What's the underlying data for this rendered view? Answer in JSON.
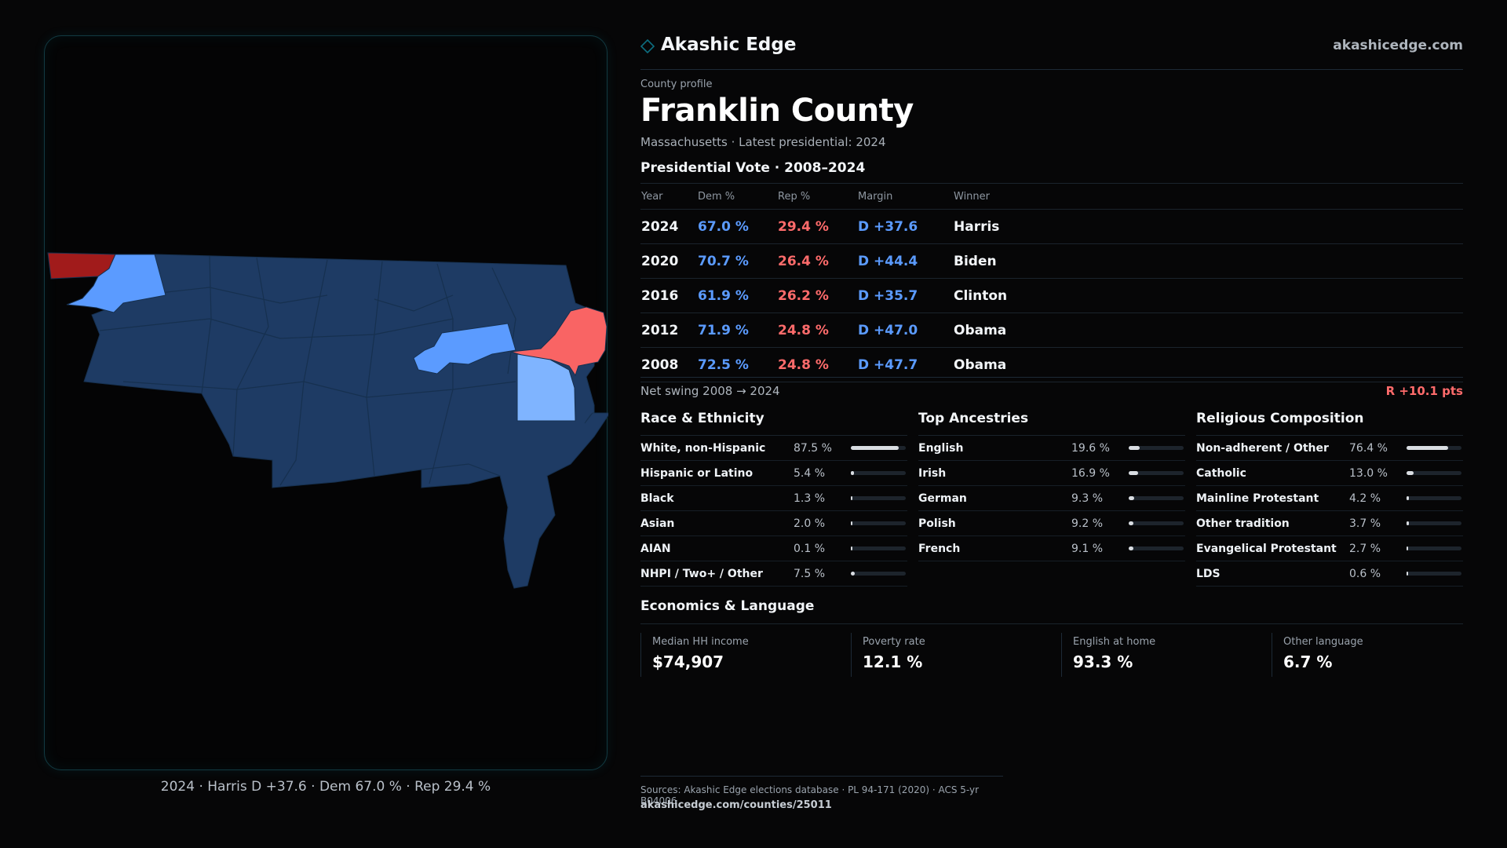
{
  "brand": {
    "name": "Akashic Edge",
    "url": "akashicedge.com"
  },
  "profile": {
    "kicker": "County profile",
    "title": "Franklin County",
    "subtitle": "Massachusetts · Latest presidential: 2024"
  },
  "presidential": {
    "title": "Presidential Vote · 2008–2024",
    "headers": [
      "Year",
      "Dem %",
      "Rep %",
      "Margin",
      "Winner"
    ],
    "rows": [
      {
        "year": "2024",
        "dem": "67.0 %",
        "rep": "29.4 %",
        "margin": "D +37.6",
        "winner": "Harris"
      },
      {
        "year": "2020",
        "dem": "70.7 %",
        "rep": "26.4 %",
        "margin": "D +44.4",
        "winner": "Biden"
      },
      {
        "year": "2016",
        "dem": "61.9 %",
        "rep": "26.2 %",
        "margin": "D +35.7",
        "winner": "Clinton"
      },
      {
        "year": "2012",
        "dem": "71.9 %",
        "rep": "24.8 %",
        "margin": "D +47.0",
        "winner": "Obama"
      },
      {
        "year": "2008",
        "dem": "72.5 %",
        "rep": "24.8 %",
        "margin": "D +47.7",
        "winner": "Obama"
      }
    ]
  },
  "swing": {
    "label": "Net swing 2008 → 2024",
    "value": "R +10.1 pts"
  },
  "race": {
    "title": "Race & Ethnicity",
    "items": [
      {
        "label": "White, non-Hispanic",
        "value": "87.5 %",
        "pct": 87.5
      },
      {
        "label": "Hispanic or Latino",
        "value": "5.4 %",
        "pct": 5.4
      },
      {
        "label": "Black",
        "value": "1.3 %",
        "pct": 1.3
      },
      {
        "label": "Asian",
        "value": "2.0 %",
        "pct": 2.0
      },
      {
        "label": "AIAN",
        "value": "0.1 %",
        "pct": 0.1
      },
      {
        "label": "NHPI / Two+ / Other",
        "value": "7.5 %",
        "pct": 7.5
      }
    ]
  },
  "ancestry": {
    "title": "Top Ancestries",
    "items": [
      {
        "label": "English",
        "value": "19.6 %",
        "pct": 19.6
      },
      {
        "label": "Irish",
        "value": "16.9 %",
        "pct": 16.9
      },
      {
        "label": "German",
        "value": "9.3 %",
        "pct": 9.3
      },
      {
        "label": "Polish",
        "value": "9.2 %",
        "pct": 9.2
      },
      {
        "label": "French",
        "value": "9.1 %",
        "pct": 9.1
      }
    ]
  },
  "religion": {
    "title": "Religious Composition",
    "items": [
      {
        "label": "Non-adherent / Other",
        "value": "76.4 %",
        "pct": 76.4
      },
      {
        "label": "Catholic",
        "value": "13.0 %",
        "pct": 13.0
      },
      {
        "label": "Mainline Protestant",
        "value": "4.2 %",
        "pct": 4.2
      },
      {
        "label": "Other tradition",
        "value": "3.7 %",
        "pct": 3.7
      },
      {
        "label": "Evangelical Protestant",
        "value": "2.7 %",
        "pct": 2.7
      },
      {
        "label": "LDS",
        "value": "0.6 %",
        "pct": 0.6
      }
    ]
  },
  "economics": {
    "title": "Economics & Language",
    "cells": [
      {
        "label": "Median HH income",
        "value": "$74,907"
      },
      {
        "label": "Poverty rate",
        "value": "12.1 %"
      },
      {
        "label": "English at home",
        "value": "93.3 %"
      },
      {
        "label": "Other language",
        "value": "6.7 %"
      }
    ]
  },
  "map": {
    "caption": "2024 · Harris D +37.6 · Dem 67.0 % · Rep 29.4 %",
    "colors": {
      "dem_base": "#1e3b64",
      "dem_strong": "#5b9bff",
      "dem_light": "#7fb4ff",
      "rep": "#f96464",
      "rep_dark": "#a11b1b",
      "border": "#16304f"
    }
  },
  "sources": {
    "text": "Sources: Akashic Edge elections database · PL 94-171 (2020) · ACS 5-yr B04006",
    "url": "akashicedge.com/counties/25011"
  },
  "colors": {
    "dem": "#5b9bff",
    "rep": "#ff6b6b",
    "accent": "#0d6e80"
  }
}
